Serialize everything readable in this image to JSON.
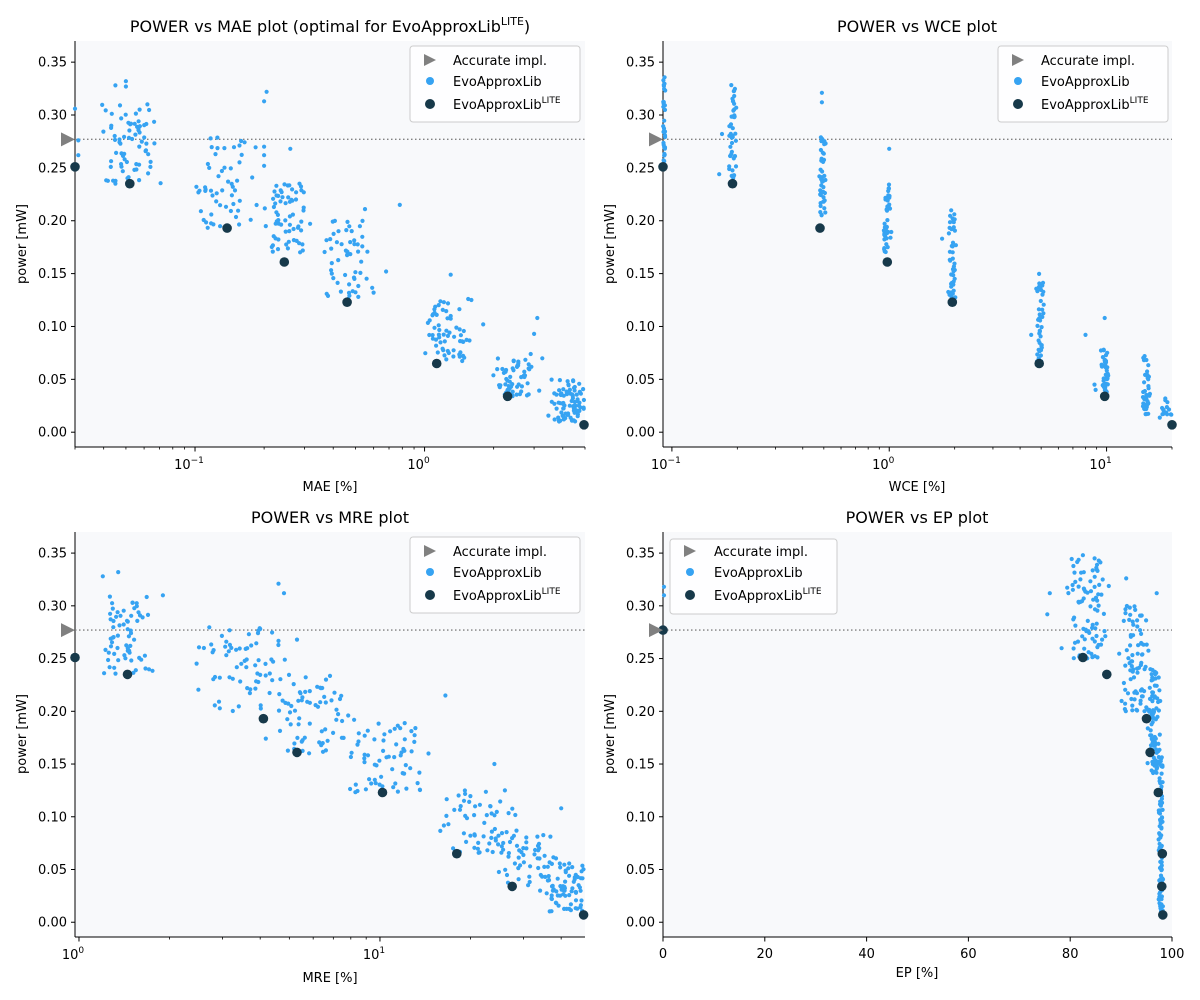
{
  "figure": {
    "background": "#ffffff",
    "plot_background": "#f8f9fb"
  },
  "colors": {
    "accurate": "#808080",
    "evo": "#36a3f2",
    "lite": "#17394a",
    "reference_line": "#808080"
  },
  "chart_data": [
    {
      "type": "scatter",
      "id": "mae",
      "title": "POWER vs MAE plot (optimal for EvoApproxLib",
      "title_sup": "LITE",
      "title_suffix": ")",
      "xlabel": "MAE [%]",
      "ylabel": "power [mW]",
      "xscale": "log",
      "xlim": [
        0.03,
        5.0
      ],
      "ylim": [
        -0.014,
        0.37
      ],
      "xticks": [
        {
          "v": 0.1,
          "base": "10",
          "exp": "−1"
        },
        {
          "v": 1,
          "base": "10",
          "exp": "0"
        }
      ],
      "yticks": [
        "0.00",
        "0.05",
        "0.10",
        "0.15",
        "0.20",
        "0.25",
        "0.30",
        "0.35"
      ],
      "legend_position": "top-right",
      "legend": [
        "Accurate impl.",
        "EvoApproxLib",
        "EvoApproxLib"
      ],
      "legend_sup": "LITE",
      "accurate_power": 0.277,
      "accurate": [
        {
          "x": 0.03,
          "y": 0.277
        }
      ],
      "lite": [
        [
          0.03,
          0.251
        ],
        [
          0.052,
          0.235
        ],
        [
          0.138,
          0.193
        ],
        [
          0.245,
          0.161
        ],
        [
          0.46,
          0.123
        ],
        [
          1.13,
          0.065
        ],
        [
          2.3,
          0.034
        ],
        [
          4.95,
          0.007
        ]
      ],
      "evo_clusters": [
        {
          "x": 0.052,
          "spread": 0.14,
          "ymin": 0.235,
          "ymax": 0.31,
          "n": 70
        },
        {
          "x": 0.135,
          "spread": 0.16,
          "ymin": 0.193,
          "ymax": 0.28,
          "n": 55
        },
        {
          "x": 0.25,
          "spread": 0.12,
          "ymin": 0.17,
          "ymax": 0.235,
          "n": 65
        },
        {
          "x": 0.47,
          "spread": 0.12,
          "ymin": 0.123,
          "ymax": 0.2,
          "n": 55
        },
        {
          "x": 1.25,
          "spread": 0.12,
          "ymin": 0.065,
          "ymax": 0.125,
          "n": 60
        },
        {
          "x": 2.5,
          "spread": 0.12,
          "ymin": 0.034,
          "ymax": 0.07,
          "n": 60
        },
        {
          "x": 4.3,
          "spread": 0.1,
          "ymin": 0.01,
          "ymax": 0.05,
          "n": 90
        }
      ],
      "evo_extra": [
        [
          0.03,
          0.306
        ],
        [
          0.031,
          0.276
        ],
        [
          0.031,
          0.262
        ],
        [
          0.045,
          0.328
        ],
        [
          0.05,
          0.332
        ],
        [
          0.05,
          0.327
        ],
        [
          0.062,
          0.31
        ],
        [
          0.205,
          0.322
        ],
        [
          0.2,
          0.313
        ],
        [
          0.2,
          0.27
        ],
        [
          0.2,
          0.262
        ],
        [
          0.2,
          0.252
        ],
        [
          0.26,
          0.268
        ],
        [
          0.55,
          0.211
        ],
        [
          0.78,
          0.215
        ],
        [
          0.68,
          0.152
        ],
        [
          0.6,
          0.132
        ],
        [
          1.3,
          0.149
        ],
        [
          1.55,
          0.126
        ],
        [
          1.6,
          0.125
        ],
        [
          1.8,
          0.102
        ],
        [
          3.1,
          0.108
        ],
        [
          2.9,
          0.074
        ],
        [
          3.0,
          0.093
        ]
      ]
    },
    {
      "type": "scatter",
      "id": "wce",
      "title": "POWER vs WCE plot",
      "xlabel": "WCE [%]",
      "ylabel": "power [mW]",
      "xscale": "log",
      "xlim": [
        0.091,
        20.0
      ],
      "ylim": [
        -0.014,
        0.37
      ],
      "xticks": [
        {
          "v": 0.1,
          "base": "10",
          "exp": "−1"
        },
        {
          "v": 1,
          "base": "10",
          "exp": "0"
        },
        {
          "v": 10,
          "base": "10",
          "exp": "1"
        }
      ],
      "yticks": [
        "0.00",
        "0.05",
        "0.10",
        "0.15",
        "0.20",
        "0.25",
        "0.30",
        "0.35"
      ],
      "legend_position": "top-right",
      "legend": [
        "Accurate impl.",
        "EvoApproxLib",
        "EvoApproxLib"
      ],
      "legend_sup": "LITE",
      "accurate_power": 0.277,
      "accurate": [
        {
          "x": 0.091,
          "y": 0.277
        }
      ],
      "lite": [
        [
          0.091,
          0.251
        ],
        [
          0.19,
          0.235
        ],
        [
          0.48,
          0.193
        ],
        [
          0.98,
          0.161
        ],
        [
          1.95,
          0.123
        ],
        [
          4.9,
          0.065
        ],
        [
          9.8,
          0.034
        ],
        [
          20.0,
          0.007
        ]
      ],
      "evo_clusters": [
        {
          "x": 0.092,
          "spread": 0.01,
          "ymin": 0.25,
          "ymax": 0.345,
          "n": 40
        },
        {
          "x": 0.19,
          "spread": 0.02,
          "ymin": 0.24,
          "ymax": 0.33,
          "n": 45
        },
        {
          "x": 0.49,
          "spread": 0.02,
          "ymin": 0.205,
          "ymax": 0.28,
          "n": 45
        },
        {
          "x": 0.98,
          "spread": 0.02,
          "ymin": 0.17,
          "ymax": 0.235,
          "n": 45
        },
        {
          "x": 1.95,
          "spread": 0.02,
          "ymin": 0.125,
          "ymax": 0.215,
          "n": 45
        },
        {
          "x": 4.95,
          "spread": 0.02,
          "ymin": 0.065,
          "ymax": 0.15,
          "n": 45
        },
        {
          "x": 9.8,
          "spread": 0.02,
          "ymin": 0.034,
          "ymax": 0.08,
          "n": 40
        },
        {
          "x": 15.2,
          "spread": 0.02,
          "ymin": 0.015,
          "ymax": 0.073,
          "n": 45
        },
        {
          "x": 19.0,
          "spread": 0.04,
          "ymin": 0.012,
          "ymax": 0.032,
          "n": 18
        }
      ],
      "evo_extra": [
        [
          0.17,
          0.282
        ],
        [
          0.165,
          0.244
        ],
        [
          0.49,
          0.321
        ],
        [
          0.49,
          0.312
        ],
        [
          1.0,
          0.268
        ],
        [
          1.75,
          0.183
        ],
        [
          4.5,
          0.092
        ],
        [
          8.0,
          0.092
        ],
        [
          9.8,
          0.108
        ],
        [
          8.8,
          0.045
        ],
        [
          8.9,
          0.04
        ]
      ]
    },
    {
      "type": "scatter",
      "id": "mre",
      "title": "POWER vs MRE plot",
      "xlabel": "MRE [%]",
      "ylabel": "power [mW]",
      "xscale": "log",
      "xlim": [
        0.97,
        48.0
      ],
      "ylim": [
        -0.014,
        0.37
      ],
      "xticks": [
        {
          "v": 1,
          "base": "10",
          "exp": "0"
        },
        {
          "v": 10,
          "base": "10",
          "exp": "1"
        }
      ],
      "yticks": [
        "0.00",
        "0.05",
        "0.10",
        "0.15",
        "0.20",
        "0.25",
        "0.30",
        "0.35"
      ],
      "legend_position": "top-right",
      "legend": [
        "Accurate impl.",
        "EvoApproxLib",
        "EvoApproxLib"
      ],
      "legend_sup": "LITE",
      "accurate_power": 0.277,
      "accurate": [
        {
          "x": 0.97,
          "y": 0.277
        }
      ],
      "lite": [
        [
          0.97,
          0.251
        ],
        [
          1.45,
          0.235
        ],
        [
          4.1,
          0.193
        ],
        [
          5.3,
          0.161
        ],
        [
          10.2,
          0.123
        ],
        [
          18.0,
          0.065
        ],
        [
          27.5,
          0.034
        ],
        [
          47.5,
          0.007
        ]
      ],
      "evo_clusters": [
        {
          "x": 1.42,
          "spread": 0.1,
          "ymin": 0.235,
          "ymax": 0.31,
          "n": 65
        },
        {
          "x": 3.5,
          "spread": 0.18,
          "ymin": 0.2,
          "ymax": 0.28,
          "n": 65
        },
        {
          "x": 6.0,
          "spread": 0.18,
          "ymin": 0.16,
          "ymax": 0.235,
          "n": 70
        },
        {
          "x": 10.5,
          "spread": 0.15,
          "ymin": 0.123,
          "ymax": 0.19,
          "n": 60
        },
        {
          "x": 21.0,
          "spread": 0.15,
          "ymin": 0.065,
          "ymax": 0.125,
          "n": 55
        },
        {
          "x": 30.0,
          "spread": 0.12,
          "ymin": 0.035,
          "ymax": 0.09,
          "n": 50
        },
        {
          "x": 42.0,
          "spread": 0.1,
          "ymin": 0.01,
          "ymax": 0.062,
          "n": 85
        }
      ],
      "evo_extra": [
        [
          1.2,
          0.328
        ],
        [
          1.35,
          0.332
        ],
        [
          1.9,
          0.31
        ],
        [
          2.6,
          0.26
        ],
        [
          2.8,
          0.258
        ],
        [
          4.6,
          0.321
        ],
        [
          4.8,
          0.312
        ],
        [
          5.3,
          0.268
        ],
        [
          4.0,
          0.278
        ],
        [
          14.5,
          0.16
        ],
        [
          13.0,
          0.171
        ],
        [
          16.5,
          0.215
        ],
        [
          24.0,
          0.15
        ],
        [
          26.0,
          0.125
        ],
        [
          40.0,
          0.108
        ]
      ]
    },
    {
      "type": "scatter",
      "id": "ep",
      "title": "POWER vs EP plot",
      "xlabel": "EP [%]",
      "ylabel": "power [mW]",
      "xscale": "linear",
      "xlim": [
        0,
        100
      ],
      "ylim": [
        -0.014,
        0.37
      ],
      "xticks": [
        {
          "v": 0,
          "label": "0"
        },
        {
          "v": 20,
          "label": "20"
        },
        {
          "v": 40,
          "label": "40"
        },
        {
          "v": 60,
          "label": "60"
        },
        {
          "v": 80,
          "label": "80"
        },
        {
          "v": 100,
          "label": "100"
        }
      ],
      "yticks": [
        "0.00",
        "0.05",
        "0.10",
        "0.15",
        "0.20",
        "0.25",
        "0.30",
        "0.35"
      ],
      "legend_position": "top-left",
      "legend": [
        "Accurate impl.",
        "EvoApproxLib",
        "EvoApproxLib"
      ],
      "legend_sup": "LITE",
      "accurate_power": 0.277,
      "accurate": [
        {
          "x": 0,
          "y": 0.277
        }
      ],
      "lite": [
        [
          0,
          0.277
        ],
        [
          82.5,
          0.251
        ],
        [
          87.2,
          0.235
        ],
        [
          95.0,
          0.193
        ],
        [
          95.7,
          0.161
        ],
        [
          97.3,
          0.123
        ],
        [
          98.1,
          0.065
        ],
        [
          98.0,
          0.034
        ],
        [
          98.2,
          0.007
        ]
      ],
      "evo_clusters": [
        {
          "x": 83.0,
          "spread": 5.0,
          "ymin": 0.25,
          "ymax": 0.345,
          "n": 90
        },
        {
          "x": 92.5,
          "spread": 3.5,
          "ymin": 0.2,
          "ymax": 0.3,
          "n": 80
        },
        {
          "x": 96.5,
          "spread": 1.4,
          "ymin": 0.14,
          "ymax": 0.24,
          "n": 90
        },
        {
          "x": 97.8,
          "spread": 0.5,
          "ymin": 0.005,
          "ymax": 0.16,
          "n": 90
        }
      ],
      "evo_extra": [
        [
          0.2,
          0.318
        ],
        [
          0.2,
          0.31
        ],
        [
          75.5,
          0.292
        ],
        [
          76.0,
          0.312
        ],
        [
          82.5,
          0.348
        ],
        [
          97.0,
          0.312
        ],
        [
          91.0,
          0.326
        ]
      ]
    }
  ]
}
